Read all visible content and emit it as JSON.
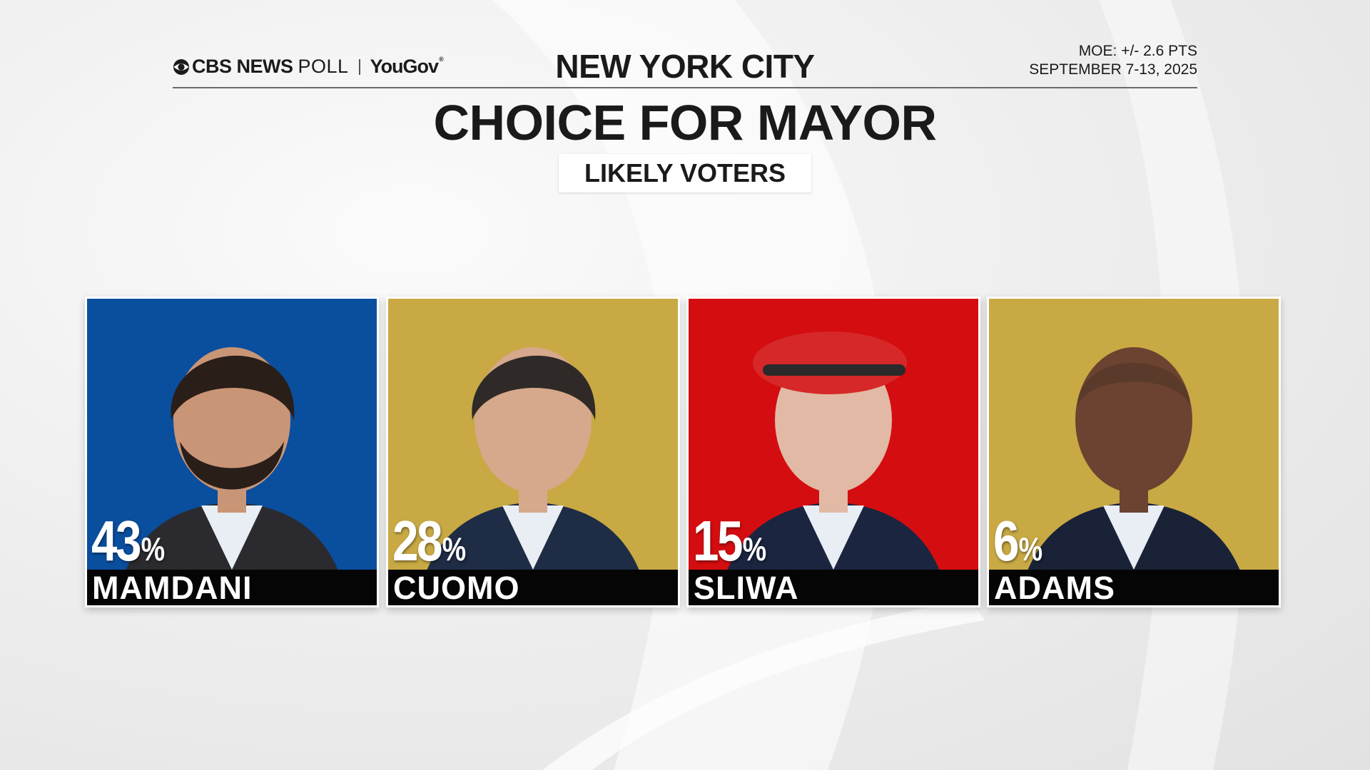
{
  "header": {
    "logo_cbs": "CBS NEWS",
    "logo_poll": "POLL",
    "logo_yougov": "YouGov",
    "city": "NEW YORK CITY",
    "moe": "MOE: +/- 2.6 PTS",
    "dates": "SEPTEMBER 7-13, 2025"
  },
  "title": "CHOICE FOR MAYOR",
  "subtitle": "LIKELY VOTERS",
  "colors": {
    "blue": "#0a4e9e",
    "gold": "#c8a944",
    "red": "#d40d10",
    "name_bar": "#050505"
  },
  "chart_data": {
    "type": "bar",
    "title": "CHOICE FOR MAYOR",
    "subtitle": "LIKELY VOTERS",
    "categories": [
      "MAMDANI",
      "CUOMO",
      "SLIWA",
      "ADAMS"
    ],
    "values": [
      43,
      28,
      15,
      6
    ],
    "unit": "%",
    "colors": [
      "#0a4e9e",
      "#c8a944",
      "#d40d10",
      "#c8a944"
    ],
    "icons": [
      "candidate-portrait-icon",
      "candidate-portrait-icon",
      "candidate-portrait-icon",
      "candidate-portrait-icon"
    ]
  }
}
